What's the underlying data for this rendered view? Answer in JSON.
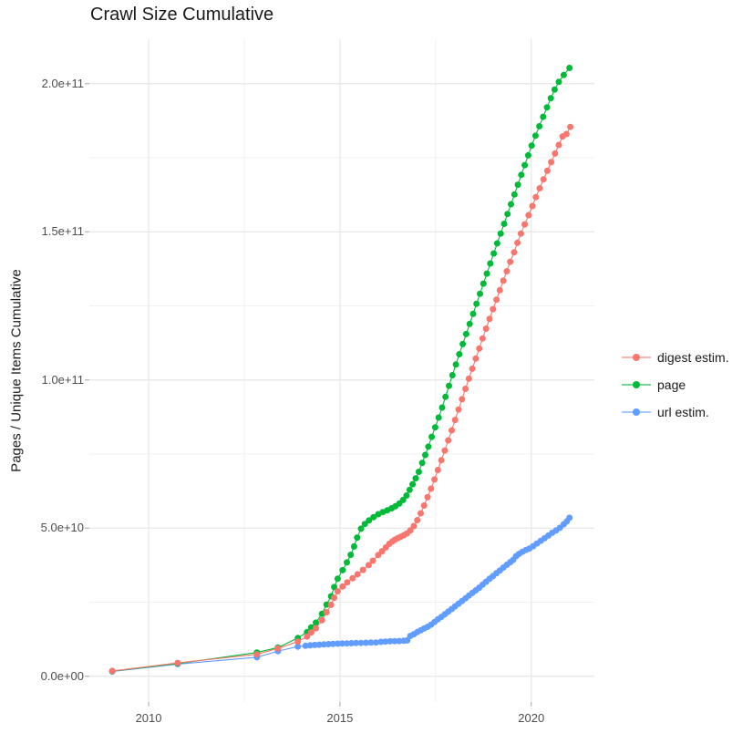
{
  "title": "Crawl Size Cumulative",
  "y_axis": {
    "label": "Pages / Unique Items Cumulative",
    "tick_labels": [
      "0.0e+00",
      "5.0e+10",
      "1.0e+11",
      "1.5e+11",
      "2.0e+11"
    ],
    "tick_values": [
      0,
      50000000000.0,
      100000000000.0,
      150000000000.0,
      200000000000.0
    ]
  },
  "x_axis": {
    "tick_labels": [
      "2010",
      "2015",
      "2020"
    ],
    "tick_values": [
      2010,
      2015,
      2020
    ]
  },
  "legend": {
    "position": "right",
    "items": [
      {
        "label": "digest estim.",
        "color": "#F8766D"
      },
      {
        "label": "page",
        "color": "#00BA38"
      },
      {
        "label": "url estim.",
        "color": "#619CFF"
      }
    ]
  },
  "chart_data": {
    "type": "scatter",
    "title": "Crawl Size Cumulative",
    "xlabel": "",
    "ylabel": "Pages / Unique Items Cumulative",
    "xlim": [
      2008.45,
      2021.65
    ],
    "ylim": [
      -8700000000.0,
      215000000000.0
    ],
    "x_ticks": [
      2010,
      2015,
      2020
    ],
    "y_ticks": [
      0,
      50000000000.0,
      100000000000.0,
      150000000000.0,
      200000000000.0
    ],
    "x_minor_ticks": [
      2012.5,
      2017.5
    ],
    "y_minor_ticks": [
      25000000000.0,
      75000000000.0,
      125000000000.0,
      175000000000.0
    ],
    "grid": "on",
    "legend_position": "right",
    "marker_color_hint": "ggplot default hue palette",
    "series": [
      {
        "name": "url estim.",
        "color": "#619CFF",
        "points": [
          [
            2009.05,
            1600000000.0
          ],
          [
            2010.76,
            4100000000.0
          ],
          [
            2012.83,
            6400000000.0
          ],
          [
            2013.38,
            8500000000.0
          ],
          [
            2013.9,
            10000000000.0
          ],
          [
            2014.1,
            10300000000.0
          ],
          [
            2014.22,
            10450000000.0
          ],
          [
            2014.34,
            10550000000.0
          ],
          [
            2014.46,
            10650000000.0
          ],
          [
            2014.58,
            10750000000.0
          ],
          [
            2014.7,
            10850000000.0
          ],
          [
            2014.82,
            10920000000.0
          ],
          [
            2014.94,
            11000000000.0
          ],
          [
            2015.06,
            11050000000.0
          ],
          [
            2015.18,
            11100000000.0
          ],
          [
            2015.3,
            11150000000.0
          ],
          [
            2015.42,
            11200000000.0
          ],
          [
            2015.55,
            11250000000.0
          ],
          [
            2015.68,
            11300000000.0
          ],
          [
            2015.81,
            11350000000.0
          ],
          [
            2015.94,
            11400000000.0
          ],
          [
            2016.07,
            11600000000.0
          ],
          [
            2016.19,
            11700000000.0
          ],
          [
            2016.31,
            11780000000.0
          ],
          [
            2016.43,
            11850000000.0
          ],
          [
            2016.55,
            11900000000.0
          ],
          [
            2016.67,
            11970000000.0
          ],
          [
            2016.76,
            12100000000.0
          ],
          [
            2016.84,
            13600000000.0
          ],
          [
            2016.93,
            14200000000.0
          ],
          [
            2017.02,
            14900000000.0
          ],
          [
            2017.11,
            15500000000.0
          ],
          [
            2017.2,
            16100000000.0
          ],
          [
            2017.29,
            16700000000.0
          ],
          [
            2017.38,
            17400000000.0
          ],
          [
            2017.47,
            18300000000.0
          ],
          [
            2017.56,
            19200000000.0
          ],
          [
            2017.65,
            20000000000.0
          ],
          [
            2017.74,
            20900000000.0
          ],
          [
            2017.83,
            21800000000.0
          ],
          [
            2017.92,
            22700000000.0
          ],
          [
            2018.01,
            23600000000.0
          ],
          [
            2018.1,
            24500000000.0
          ],
          [
            2018.19,
            25400000000.0
          ],
          [
            2018.28,
            26300000000.0
          ],
          [
            2018.37,
            27200000000.0
          ],
          [
            2018.46,
            28100000000.0
          ],
          [
            2018.55,
            29000000000.0
          ],
          [
            2018.64,
            29900000000.0
          ],
          [
            2018.73,
            30900000000.0
          ],
          [
            2018.82,
            31900000000.0
          ],
          [
            2018.91,
            32900000000.0
          ],
          [
            2019.0,
            33800000000.0
          ],
          [
            2019.09,
            34800000000.0
          ],
          [
            2019.18,
            35700000000.0
          ],
          [
            2019.27,
            36700000000.0
          ],
          [
            2019.36,
            37600000000.0
          ],
          [
            2019.45,
            38500000000.0
          ],
          [
            2019.53,
            39300000000.0
          ],
          [
            2019.6,
            40500000000.0
          ],
          [
            2019.68,
            41300000000.0
          ],
          [
            2019.77,
            42000000000.0
          ],
          [
            2019.86,
            42600000000.0
          ],
          [
            2019.95,
            43100000000.0
          ],
          [
            2020.05,
            43900000000.0
          ],
          [
            2020.15,
            44800000000.0
          ],
          [
            2020.25,
            45700000000.0
          ],
          [
            2020.35,
            46600000000.0
          ],
          [
            2020.45,
            47500000000.0
          ],
          [
            2020.55,
            48400000000.0
          ],
          [
            2020.65,
            49200000000.0
          ],
          [
            2020.75,
            50100000000.0
          ],
          [
            2020.85,
            51300000000.0
          ],
          [
            2020.93,
            52300000000.0
          ],
          [
            2021.0,
            53500000000.0
          ]
        ]
      },
      {
        "name": "page",
        "color": "#00BA38",
        "points": [
          [
            2009.05,
            1700000000.0
          ],
          [
            2010.76,
            4300000000.0
          ],
          [
            2012.83,
            8000000000.0
          ],
          [
            2013.38,
            9700000000.0
          ],
          [
            2013.9,
            12900000000.0
          ],
          [
            2014.14,
            14900000000.0
          ],
          [
            2014.25,
            16500000000.0
          ],
          [
            2014.37,
            18100000000.0
          ],
          [
            2014.53,
            21100000000.0
          ],
          [
            2014.65,
            24200000000.0
          ],
          [
            2014.77,
            27000000000.0
          ],
          [
            2014.85,
            30100000000.0
          ],
          [
            2014.94,
            32900000000.0
          ],
          [
            2015.07,
            35800000000.0
          ],
          [
            2015.18,
            38400000000.0
          ],
          [
            2015.28,
            41000000000.0
          ],
          [
            2015.37,
            43800000000.0
          ],
          [
            2015.45,
            46800000000.0
          ],
          [
            2015.55,
            49800000000.0
          ],
          [
            2015.65,
            51400000000.0
          ],
          [
            2015.76,
            52600000000.0
          ],
          [
            2015.88,
            53700000000.0
          ],
          [
            2016.0,
            54700000000.0
          ],
          [
            2016.12,
            55400000000.0
          ],
          [
            2016.24,
            56000000000.0
          ],
          [
            2016.35,
            56700000000.0
          ],
          [
            2016.45,
            57400000000.0
          ],
          [
            2016.55,
            58300000000.0
          ],
          [
            2016.65,
            59500000000.0
          ],
          [
            2016.74,
            61000000000.0
          ],
          [
            2016.82,
            62900000000.0
          ],
          [
            2016.9,
            64800000000.0
          ],
          [
            2016.98,
            66800000000.0
          ],
          [
            2017.06,
            69000000000.0
          ],
          [
            2017.15,
            72000000000.0
          ],
          [
            2017.23,
            74700000000.0
          ],
          [
            2017.31,
            77500000000.0
          ],
          [
            2017.4,
            80800000000.0
          ],
          [
            2017.49,
            84000000000.0
          ],
          [
            2017.58,
            87300000000.0
          ],
          [
            2017.67,
            90700000000.0
          ],
          [
            2017.76,
            94300000000.0
          ],
          [
            2017.85,
            98000000000.0
          ],
          [
            2017.94,
            101600000000.0
          ],
          [
            2018.03,
            105200000000.0
          ],
          [
            2018.12,
            108700000000.0
          ],
          [
            2018.21,
            112100000000.0
          ],
          [
            2018.3,
            115500000000.0
          ],
          [
            2018.39,
            118900000000.0
          ],
          [
            2018.48,
            122300000000.0
          ],
          [
            2018.57,
            125700000000.0
          ],
          [
            2018.66,
            129100000000.0
          ],
          [
            2018.75,
            132500000000.0
          ],
          [
            2018.84,
            135900000000.0
          ],
          [
            2018.93,
            139300000000.0
          ],
          [
            2019.02,
            142700000000.0
          ],
          [
            2019.11,
            146100000000.0
          ],
          [
            2019.2,
            149400000000.0
          ],
          [
            2019.29,
            152700000000.0
          ],
          [
            2019.38,
            156000000000.0
          ],
          [
            2019.47,
            159300000000.0
          ],
          [
            2019.56,
            162600000000.0
          ],
          [
            2019.65,
            165900000000.0
          ],
          [
            2019.74,
            169200000000.0
          ],
          [
            2019.83,
            172500000000.0
          ],
          [
            2019.92,
            175800000000.0
          ],
          [
            2020.01,
            179100000000.0
          ],
          [
            2020.11,
            182400000000.0
          ],
          [
            2020.21,
            185600000000.0
          ],
          [
            2020.31,
            188800000000.0
          ],
          [
            2020.41,
            192000000000.0
          ],
          [
            2020.51,
            195100000000.0
          ],
          [
            2020.61,
            198000000000.0
          ],
          [
            2020.72,
            200600000000.0
          ],
          [
            2020.85,
            202900000000.0
          ],
          [
            2021.0,
            205300000000.0
          ]
        ]
      },
      {
        "name": "digest estim.",
        "color": "#F8766D",
        "points": [
          [
            2009.05,
            1800000000.0
          ],
          [
            2010.76,
            4500000000.0
          ],
          [
            2012.83,
            7400000000.0
          ],
          [
            2013.38,
            9400000000.0
          ],
          [
            2013.9,
            11700000000.0
          ],
          [
            2014.14,
            13400000000.0
          ],
          [
            2014.25,
            14800000000.0
          ],
          [
            2014.37,
            16200000000.0
          ],
          [
            2014.53,
            18900000000.0
          ],
          [
            2014.65,
            21600000000.0
          ],
          [
            2014.77,
            24100000000.0
          ],
          [
            2014.85,
            26500000000.0
          ],
          [
            2014.94,
            28700000000.0
          ],
          [
            2015.07,
            30300000000.0
          ],
          [
            2015.19,
            31700000000.0
          ],
          [
            2015.33,
            33100000000.0
          ],
          [
            2015.46,
            34400000000.0
          ],
          [
            2015.6,
            35900000000.0
          ],
          [
            2015.75,
            37500000000.0
          ],
          [
            2015.86,
            39000000000.0
          ],
          [
            2016.0,
            40900000000.0
          ],
          [
            2016.1,
            42200000000.0
          ],
          [
            2016.2,
            43500000000.0
          ],
          [
            2016.29,
            44700000000.0
          ],
          [
            2016.37,
            45500000000.0
          ],
          [
            2016.44,
            46100000000.0
          ],
          [
            2016.51,
            46600000000.0
          ],
          [
            2016.59,
            47100000000.0
          ],
          [
            2016.67,
            47600000000.0
          ],
          [
            2016.75,
            48200000000.0
          ],
          [
            2016.84,
            49200000000.0
          ],
          [
            2016.93,
            50700000000.0
          ],
          [
            2017.02,
            52700000000.0
          ],
          [
            2017.11,
            55000000000.0
          ],
          [
            2017.2,
            57600000000.0
          ],
          [
            2017.29,
            60400000000.0
          ],
          [
            2017.38,
            63300000000.0
          ],
          [
            2017.47,
            66400000000.0
          ],
          [
            2017.56,
            69600000000.0
          ],
          [
            2017.65,
            72900000000.0
          ],
          [
            2017.74,
            76200000000.0
          ],
          [
            2017.83,
            79600000000.0
          ],
          [
            2017.92,
            83000000000.0
          ],
          [
            2018.01,
            86500000000.0
          ],
          [
            2018.1,
            90000000000.0
          ],
          [
            2018.19,
            93500000000.0
          ],
          [
            2018.28,
            97000000000.0
          ],
          [
            2018.37,
            100400000000.0
          ],
          [
            2018.46,
            103800000000.0
          ],
          [
            2018.55,
            107200000000.0
          ],
          [
            2018.64,
            110600000000.0
          ],
          [
            2018.73,
            114000000000.0
          ],
          [
            2018.82,
            117300000000.0
          ],
          [
            2018.91,
            120600000000.0
          ],
          [
            2019.0,
            123900000000.0
          ],
          [
            2019.09,
            127100000000.0
          ],
          [
            2019.18,
            130300000000.0
          ],
          [
            2019.27,
            133500000000.0
          ],
          [
            2019.36,
            136700000000.0
          ],
          [
            2019.45,
            139900000000.0
          ],
          [
            2019.55,
            143100000000.0
          ],
          [
            2019.64,
            146300000000.0
          ],
          [
            2019.73,
            149400000000.0
          ],
          [
            2019.83,
            152500000000.0
          ],
          [
            2019.93,
            155600000000.0
          ],
          [
            2020.03,
            158700000000.0
          ],
          [
            2020.12,
            161700000000.0
          ],
          [
            2020.22,
            164700000000.0
          ],
          [
            2020.32,
            167700000000.0
          ],
          [
            2020.42,
            170600000000.0
          ],
          [
            2020.52,
            173500000000.0
          ],
          [
            2020.62,
            176400000000.0
          ],
          [
            2020.72,
            179300000000.0
          ],
          [
            2020.82,
            182200000000.0
          ],
          [
            2020.92,
            183000000000.0
          ],
          [
            2021.02,
            185400000000.0
          ]
        ]
      }
    ]
  }
}
